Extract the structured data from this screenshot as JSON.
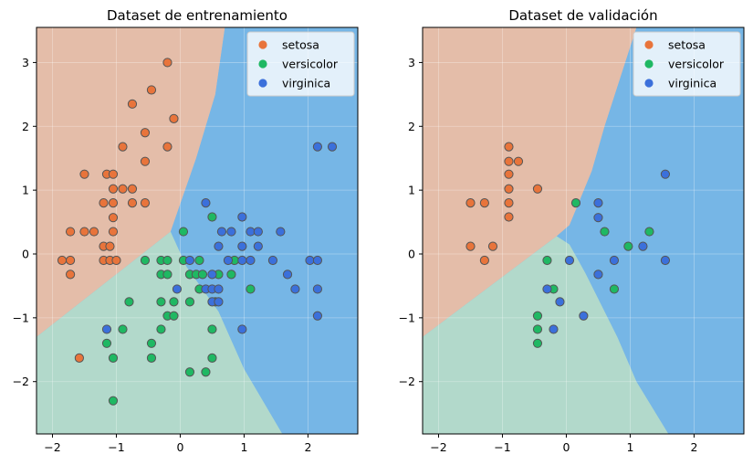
{
  "colors": {
    "setosa": "#e8743b",
    "versicolor": "#1fb863",
    "virginica": "#3b70db",
    "region_setosa": "#e4bda9",
    "region_versicolor": "#b2d9cb",
    "region_virginica": "#76b6e6",
    "marker_edge": "#555555"
  },
  "chart_data": [
    {
      "type": "scatter",
      "title": "Dataset de entrenamiento",
      "xlabel": "",
      "ylabel": "",
      "xlim": [
        -2.25,
        2.78
      ],
      "ylim": [
        -2.82,
        3.55
      ],
      "xticks": [
        -2,
        -1,
        0,
        1,
        2
      ],
      "yticks": [
        -2,
        -1,
        0,
        1,
        2,
        3
      ],
      "xtick_labels": [
        "−2",
        "−1",
        "0",
        "1",
        "2"
      ],
      "ytick_labels": [
        "−2",
        "−1",
        "0",
        "1",
        "2",
        "3"
      ],
      "grid": true,
      "legend": "top-right",
      "regions": {
        "setosa": [
          [
            -2.25,
            3.55
          ],
          [
            0.7,
            3.55
          ],
          [
            0.55,
            2.5
          ],
          [
            0.25,
            1.5
          ],
          [
            -0.15,
            0.35
          ],
          [
            -2.25,
            -1.3
          ]
        ],
        "versicolor": [
          [
            -2.25,
            -1.3
          ],
          [
            -0.15,
            0.35
          ],
          [
            0.1,
            -0.2
          ],
          [
            0.6,
            -0.9
          ],
          [
            1.0,
            -1.8
          ],
          [
            1.6,
            -2.82
          ],
          [
            -2.25,
            -2.82
          ]
        ],
        "virginica": [
          [
            0.7,
            3.55
          ],
          [
            2.78,
            3.55
          ],
          [
            2.78,
            -2.82
          ],
          [
            1.6,
            -2.82
          ],
          [
            1.0,
            -1.8
          ],
          [
            0.6,
            -0.9
          ],
          [
            0.1,
            -0.2
          ],
          [
            -0.15,
            0.35
          ],
          [
            0.25,
            1.5
          ],
          [
            0.55,
            2.5
          ]
        ]
      },
      "series": [
        {
          "name": "setosa",
          "points": [
            [
              -0.2,
              3.0
            ],
            [
              -0.45,
              2.57
            ],
            [
              -0.75,
              2.35
            ],
            [
              -0.1,
              2.12
            ],
            [
              -0.55,
              1.9
            ],
            [
              -0.2,
              1.68
            ],
            [
              -0.9,
              1.68
            ],
            [
              -0.55,
              1.45
            ],
            [
              -1.5,
              1.25
            ],
            [
              -1.15,
              1.25
            ],
            [
              -1.05,
              1.25
            ],
            [
              -1.05,
              1.02
            ],
            [
              -0.9,
              1.02
            ],
            [
              -0.75,
              1.02
            ],
            [
              -1.2,
              0.8
            ],
            [
              -1.05,
              0.8
            ],
            [
              -0.75,
              0.8
            ],
            [
              -0.55,
              0.8
            ],
            [
              -1.05,
              0.57
            ],
            [
              -1.72,
              0.35
            ],
            [
              -1.5,
              0.35
            ],
            [
              -1.35,
              0.35
            ],
            [
              -1.05,
              0.35
            ],
            [
              -1.2,
              0.12
            ],
            [
              -1.1,
              0.12
            ],
            [
              -1.85,
              -0.1
            ],
            [
              -1.72,
              -0.1
            ],
            [
              -1.2,
              -0.1
            ],
            [
              -1.1,
              -0.1
            ],
            [
              -1.0,
              -0.1
            ],
            [
              -1.72,
              -0.32
            ],
            [
              -1.58,
              -1.63
            ]
          ]
        },
        {
          "name": "versicolor",
          "points": [
            [
              0.05,
              0.35
            ],
            [
              0.5,
              0.58
            ],
            [
              0.05,
              -0.1
            ],
            [
              0.3,
              -0.1
            ],
            [
              -0.55,
              -0.1
            ],
            [
              -0.3,
              -0.1
            ],
            [
              -0.2,
              -0.1
            ],
            [
              0.85,
              -0.1
            ],
            [
              -0.3,
              -0.32
            ],
            [
              -0.2,
              -0.32
            ],
            [
              0.15,
              -0.32
            ],
            [
              0.25,
              -0.32
            ],
            [
              0.35,
              -0.32
            ],
            [
              0.6,
              -0.32
            ],
            [
              0.8,
              -0.32
            ],
            [
              0.3,
              -0.55
            ],
            [
              1.1,
              -0.55
            ],
            [
              -0.8,
              -0.75
            ],
            [
              -0.3,
              -0.75
            ],
            [
              -0.1,
              -0.75
            ],
            [
              0.15,
              -0.75
            ],
            [
              0.55,
              -0.75
            ],
            [
              -0.2,
              -0.97
            ],
            [
              -0.1,
              -0.97
            ],
            [
              -0.9,
              -1.18
            ],
            [
              -0.3,
              -1.18
            ],
            [
              0.5,
              -1.18
            ],
            [
              -1.15,
              -1.4
            ],
            [
              -0.45,
              -1.4
            ],
            [
              -1.05,
              -1.63
            ],
            [
              -0.45,
              -1.63
            ],
            [
              0.5,
              -1.63
            ],
            [
              0.15,
              -1.85
            ],
            [
              0.4,
              -1.85
            ],
            [
              -1.05,
              -2.3
            ]
          ]
        },
        {
          "name": "virginica",
          "points": [
            [
              2.15,
              1.68
            ],
            [
              2.38,
              1.68
            ],
            [
              0.4,
              0.8
            ],
            [
              0.97,
              0.58
            ],
            [
              0.65,
              0.35
            ],
            [
              0.8,
              0.35
            ],
            [
              1.1,
              0.35
            ],
            [
              1.22,
              0.35
            ],
            [
              1.57,
              0.35
            ],
            [
              0.6,
              0.12
            ],
            [
              0.97,
              0.12
            ],
            [
              1.22,
              0.12
            ],
            [
              0.15,
              -0.1
            ],
            [
              0.75,
              -0.1
            ],
            [
              0.97,
              -0.1
            ],
            [
              1.1,
              -0.1
            ],
            [
              1.45,
              -0.1
            ],
            [
              2.03,
              -0.1
            ],
            [
              2.15,
              -0.1
            ],
            [
              0.5,
              -0.32
            ],
            [
              1.68,
              -0.32
            ],
            [
              -0.05,
              -0.55
            ],
            [
              0.4,
              -0.55
            ],
            [
              0.5,
              -0.55
            ],
            [
              0.6,
              -0.55
            ],
            [
              1.8,
              -0.55
            ],
            [
              2.15,
              -0.55
            ],
            [
              0.5,
              -0.75
            ],
            [
              0.6,
              -0.75
            ],
            [
              2.15,
              -0.97
            ],
            [
              -1.15,
              -1.18
            ],
            [
              0.97,
              -1.18
            ]
          ]
        }
      ]
    },
    {
      "type": "scatter",
      "title": "Dataset de validación",
      "xlabel": "",
      "ylabel": "",
      "xlim": [
        -2.25,
        2.78
      ],
      "ylim": [
        -2.82,
        3.55
      ],
      "xticks": [
        -2,
        -1,
        0,
        1,
        2
      ],
      "yticks": [
        -2,
        -1,
        0,
        1,
        2,
        3
      ],
      "xtick_labels": [
        "−2",
        "−1",
        "0",
        "1",
        "2"
      ],
      "ytick_labels": [
        "−2",
        "−1",
        "0",
        "1",
        "2",
        "3"
      ],
      "grid": true,
      "legend": "top-right",
      "regions": {
        "setosa": [
          [
            -2.25,
            3.55
          ],
          [
            1.1,
            3.55
          ],
          [
            0.6,
            2.0
          ],
          [
            0.4,
            1.3
          ],
          [
            0.05,
            0.45
          ],
          [
            -0.15,
            0.28
          ],
          [
            -2.25,
            -1.3
          ]
        ],
        "versicolor": [
          [
            -2.25,
            -1.3
          ],
          [
            -0.15,
            0.28
          ],
          [
            0.05,
            0.15
          ],
          [
            0.3,
            -0.3
          ],
          [
            0.8,
            -1.3
          ],
          [
            1.1,
            -2.0
          ],
          [
            1.6,
            -2.82
          ],
          [
            -2.25,
            -2.82
          ]
        ],
        "virginica": [
          [
            1.1,
            3.55
          ],
          [
            2.78,
            3.55
          ],
          [
            2.78,
            -2.82
          ],
          [
            1.6,
            -2.82
          ],
          [
            1.1,
            -2.0
          ],
          [
            0.8,
            -1.3
          ],
          [
            0.3,
            -0.3
          ],
          [
            0.05,
            0.15
          ],
          [
            -0.15,
            0.28
          ],
          [
            0.05,
            0.45
          ],
          [
            0.4,
            1.3
          ],
          [
            0.6,
            2.0
          ]
        ]
      },
      "series": [
        {
          "name": "setosa",
          "points": [
            [
              -0.9,
              1.68
            ],
            [
              -0.9,
              1.45
            ],
            [
              -0.75,
              1.45
            ],
            [
              -0.9,
              1.25
            ],
            [
              -0.9,
              1.02
            ],
            [
              -0.45,
              1.02
            ],
            [
              -1.5,
              0.8
            ],
            [
              -1.28,
              0.8
            ],
            [
              -0.9,
              0.8
            ],
            [
              -0.9,
              0.58
            ],
            [
              -1.5,
              0.12
            ],
            [
              -1.15,
              0.12
            ],
            [
              -1.28,
              -0.1
            ]
          ]
        },
        {
          "name": "versicolor",
          "points": [
            [
              0.15,
              0.8
            ],
            [
              0.6,
              0.35
            ],
            [
              1.3,
              0.35
            ],
            [
              0.97,
              0.12
            ],
            [
              -0.3,
              -0.1
            ],
            [
              -0.2,
              -0.55
            ],
            [
              0.75,
              -0.55
            ],
            [
              -0.45,
              -0.97
            ],
            [
              -0.45,
              -1.18
            ],
            [
              -0.45,
              -1.4
            ]
          ]
        },
        {
          "name": "virginica",
          "points": [
            [
              1.55,
              1.25
            ],
            [
              0.5,
              0.8
            ],
            [
              0.5,
              0.57
            ],
            [
              1.2,
              0.12
            ],
            [
              0.05,
              -0.1
            ],
            [
              0.75,
              -0.1
            ],
            [
              1.55,
              -0.1
            ],
            [
              0.5,
              -0.32
            ],
            [
              -0.3,
              -0.55
            ],
            [
              -0.1,
              -0.75
            ],
            [
              0.27,
              -0.97
            ],
            [
              -0.2,
              -1.18
            ]
          ]
        }
      ]
    }
  ]
}
